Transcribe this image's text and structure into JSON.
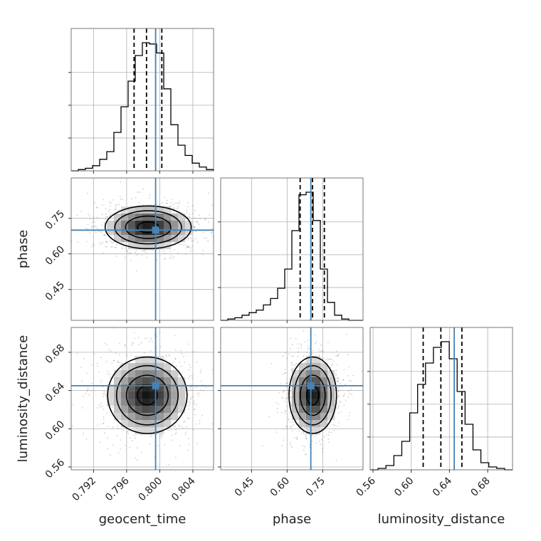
{
  "chart_data": {
    "type": "corner",
    "parameters": [
      "geocent_time",
      "phase",
      "luminosity_distance"
    ],
    "axis_labels": {
      "x": [
        "geocent_time",
        "phase",
        "luminosity_distance"
      ],
      "y": [
        "",
        "phase",
        "luminosity_distance"
      ]
    },
    "truths": {
      "geocent_time": 0.7995,
      "phase": 0.7,
      "luminosity_distance": 0.645
    },
    "colors": {
      "truth": "#4682b4",
      "hist": "#000000",
      "grid": "#b0b0b0"
    },
    "grid": true,
    "ranges": {
      "geocent_time": [
        0.7893,
        0.8065
      ],
      "phase": [
        0.32,
        0.92
      ],
      "luminosity_distance": [
        0.557,
        0.706
      ]
    },
    "ticks": {
      "geocent_time": {
        "values": [
          0.792,
          0.796,
          0.8,
          0.804
        ],
        "labels": [
          "0.792",
          "0.796",
          "0.800",
          "0.804"
        ]
      },
      "phase": {
        "values": [
          0.45,
          0.6,
          0.75
        ],
        "labels": [
          "0.45",
          "0.60",
          "0.75"
        ]
      },
      "luminosity_distance": {
        "values": [
          0.56,
          0.6,
          0.64,
          0.68
        ],
        "labels": [
          "0.56",
          "0.60",
          "0.64",
          "0.68"
        ]
      }
    },
    "histograms": [
      {
        "parameter": "geocent_time",
        "bins": [
          0.7893,
          0.8065
        ],
        "counts": [
          0,
          1,
          2,
          4,
          9,
          15,
          30,
          50,
          70,
          90,
          100,
          99,
          92,
          64,
          36,
          20,
          12,
          6,
          3,
          1
        ],
        "quantiles": [
          0.7969,
          0.7984,
          0.80025
        ]
      },
      {
        "parameter": "phase",
        "bins": [
          0.32,
          0.92
        ],
        "counts": [
          0,
          1,
          2,
          4,
          6,
          8,
          12,
          17,
          25,
          40,
          70,
          98,
          100,
          78,
          40,
          14,
          4,
          1,
          0,
          0
        ],
        "quantiles": [
          0.655,
          0.707,
          0.757
        ]
      },
      {
        "parameter": "luminosity_distance",
        "bins": [
          0.557,
          0.706
        ],
        "counts": [
          0,
          1,
          3,
          10,
          20,
          40,
          60,
          75,
          86,
          90,
          78,
          55,
          32,
          14,
          5,
          2,
          1,
          0
        ],
        "quantiles": [
          0.6125,
          0.631,
          0.653
        ]
      }
    ],
    "pair_densities": [
      {
        "x": "geocent_time",
        "y": "phase",
        "center": [
          0.7986,
          0.712
        ],
        "spread": [
          0.0026,
          0.045
        ],
        "levels": 4
      },
      {
        "x": "geocent_time",
        "y": "luminosity_distance",
        "center": [
          0.7985,
          0.635
        ],
        "spread": [
          0.0024,
          0.02
        ],
        "levels": 4
      },
      {
        "x": "phase",
        "y": "luminosity_distance",
        "center": [
          0.708,
          0.635
        ],
        "spread": [
          0.05,
          0.02
        ],
        "levels": 4
      }
    ]
  }
}
